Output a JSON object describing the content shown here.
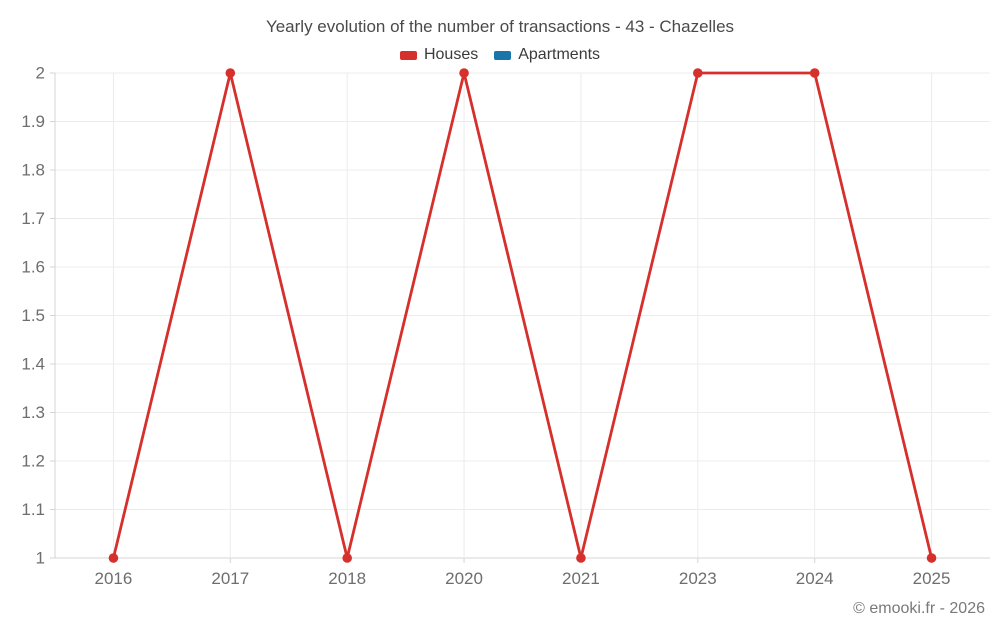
{
  "title": "Yearly evolution of the number of transactions - 43 - Chazelles",
  "footer": "© emooki.fr - 2026",
  "chart_data": {
    "type": "line",
    "title": "Yearly evolution of the number of transactions - 43 - Chazelles",
    "xlabel": "",
    "ylabel": "",
    "categories": [
      "2016",
      "2017",
      "2018",
      "2020",
      "2021",
      "2023",
      "2024",
      "2025"
    ],
    "series": [
      {
        "name": "Houses",
        "color": "#d6302d",
        "marker": "circle",
        "values": [
          1,
          2,
          1,
          2,
          1,
          2,
          2,
          1
        ]
      },
      {
        "name": "Apartments",
        "color": "#1a75a8",
        "marker": "circle",
        "values": []
      }
    ],
    "ylim": [
      1,
      2
    ],
    "y_ticks": [
      "1",
      "1.1",
      "1.2",
      "1.3",
      "1.4",
      "1.5",
      "1.6",
      "1.7",
      "1.8",
      "1.9",
      "2"
    ],
    "grid": true,
    "legend_position": "top",
    "colors": {
      "background": "#ffffff",
      "grid": "#ececec",
      "axis": "#d4d4d4",
      "tick_label": "#6e6e6e",
      "title_text": "#4a4a4a",
      "legend_text": "#3b3b3b",
      "footer_text": "#797979"
    }
  }
}
